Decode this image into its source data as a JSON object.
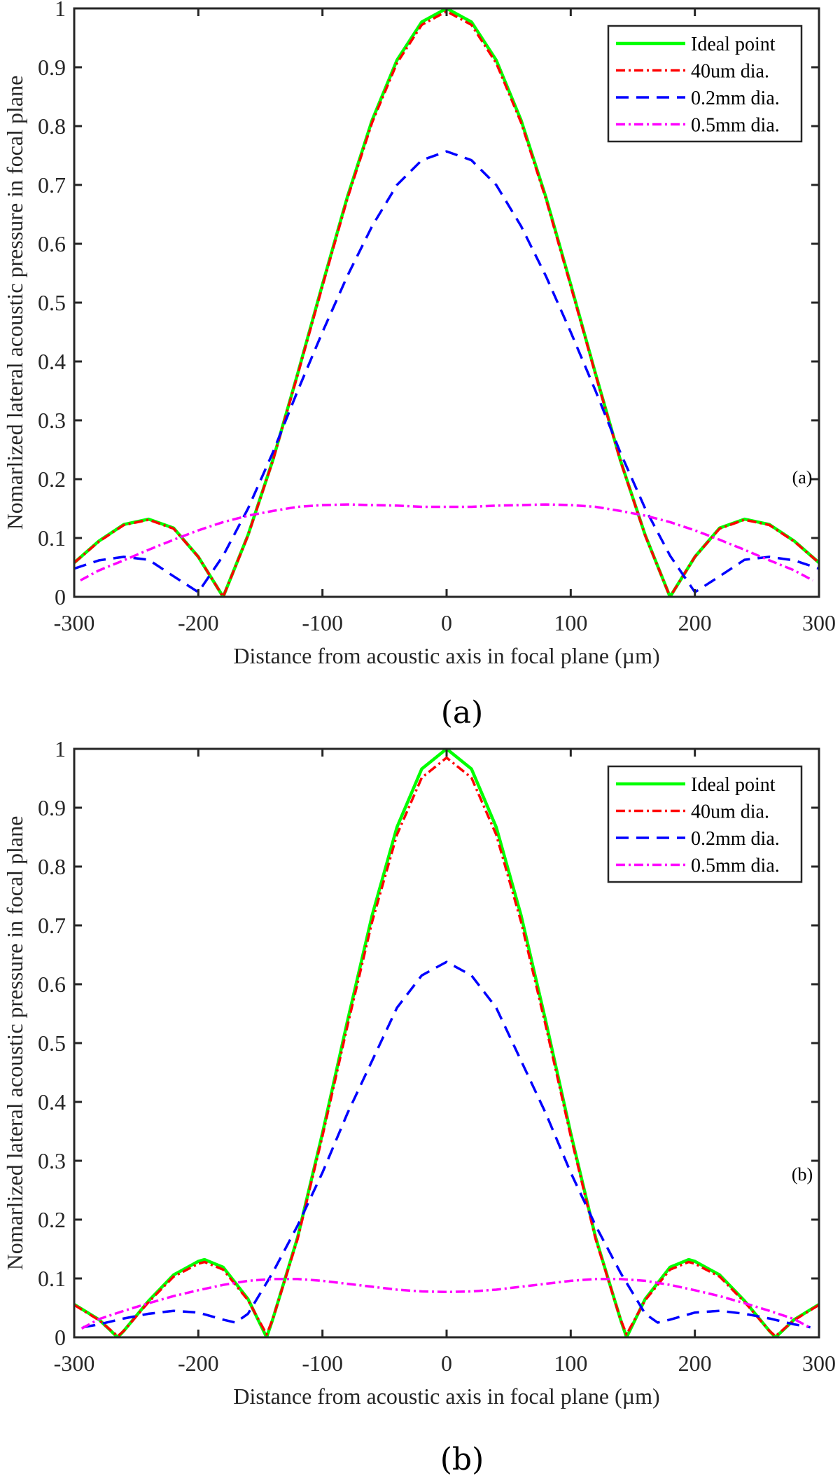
{
  "chart_data": [
    {
      "type": "line",
      "panel": "(a)",
      "caption": "(a)",
      "xlabel": "Distance from acoustic axis in focal plane (µm)",
      "ylabel": "Nomarlized lateral acoustic pressure in focal plane",
      "xlim": [
        -300,
        300
      ],
      "ylim": [
        0,
        1
      ],
      "xticks": [
        -300,
        -200,
        -100,
        0,
        100,
        200,
        300
      ],
      "yticks": [
        0,
        0.1,
        0.2,
        0.3,
        0.4,
        0.5,
        0.6,
        0.7,
        0.8,
        0.9,
        1
      ],
      "ytick_labels": [
        "0",
        "0.1",
        "0.2",
        "0.3",
        "0.4",
        "0.5",
        "0.6",
        "0.7",
        "0.8",
        "0.9",
        "1"
      ],
      "grid": false,
      "legend_position": "top-right",
      "symmetric_about_zero": true,
      "series": [
        {
          "name": "Ideal point",
          "color": "#00ff00",
          "style": "solid",
          "x": [
            0,
            20,
            40,
            60,
            80,
            100,
            120,
            140,
            160,
            180,
            200,
            220,
            240,
            260,
            280,
            300
          ],
          "y": [
            1,
            0.977,
            0.912,
            0.81,
            0.679,
            0.531,
            0.379,
            0.232,
            0.105,
            0,
            0.068,
            0.117,
            0.132,
            0.123,
            0.095,
            0.058
          ]
        },
        {
          "name": "40um dia.",
          "color": "#ff0000",
          "style": "dashdot",
          "x": [
            0,
            20,
            40,
            60,
            80,
            100,
            120,
            140,
            160,
            180,
            200,
            220,
            240,
            260,
            280,
            300
          ],
          "y": [
            0.995,
            0.972,
            0.907,
            0.806,
            0.676,
            0.528,
            0.377,
            0.231,
            0.104,
            0,
            0.068,
            0.116,
            0.131,
            0.122,
            0.094,
            0.058
          ]
        },
        {
          "name": "0.2mm dia.",
          "color": "#0000ff",
          "style": "dashed",
          "x": [
            0,
            20,
            40,
            60,
            80,
            100,
            120,
            140,
            160,
            180,
            200,
            220,
            240,
            260,
            280,
            300
          ],
          "y": [
            0.757,
            0.742,
            0.7,
            0.63,
            0.545,
            0.45,
            0.35,
            0.245,
            0.15,
            0.07,
            0.008,
            0.035,
            0.063,
            0.068,
            0.062,
            0.048
          ]
        },
        {
          "name": "0.5mm dia.",
          "color": "#ff00ff",
          "style": "dashdot",
          "x": [
            0,
            20,
            40,
            60,
            80,
            100,
            120,
            140,
            160,
            180,
            200,
            220,
            240,
            260,
            280,
            295
          ],
          "y": [
            0.153,
            0.153,
            0.155,
            0.156,
            0.157,
            0.156,
            0.153,
            0.146,
            0.138,
            0.127,
            0.113,
            0.097,
            0.08,
            0.062,
            0.045,
            0.028
          ]
        }
      ]
    },
    {
      "type": "line",
      "panel": "(b)",
      "caption": "(b)",
      "xlabel": "Distance from acoustic axis in focal plane (µm)",
      "ylabel": "Nomarlized lateral acoustic pressure in focal plane",
      "xlim": [
        -300,
        300
      ],
      "ylim": [
        0,
        1
      ],
      "xticks": [
        -300,
        -200,
        -100,
        0,
        100,
        200,
        300
      ],
      "yticks": [
        0,
        0.1,
        0.2,
        0.3,
        0.4,
        0.5,
        0.6,
        0.7,
        0.8,
        0.9,
        1
      ],
      "ytick_labels": [
        "0",
        "0.1",
        "0.2",
        "0.3",
        "0.4",
        "0.5",
        "0.6",
        "0.7",
        "0.8",
        "0.9",
        "1"
      ],
      "grid": false,
      "legend_position": "top-right",
      "symmetric_about_zero": true,
      "series": [
        {
          "name": "Ideal point",
          "color": "#00ff00",
          "style": "solid",
          "x": [
            0,
            20,
            40,
            60,
            80,
            100,
            120,
            140,
            145,
            160,
            180,
            195,
            200,
            220,
            240,
            260,
            265,
            280,
            300
          ],
          "y": [
            1,
            0.966,
            0.867,
            0.717,
            0.536,
            0.347,
            0.17,
            0.031,
            0,
            0.065,
            0.119,
            0.132,
            0.129,
            0.106,
            0.062,
            0.011,
            0,
            0.03,
            0.056
          ]
        },
        {
          "name": "40um dia.",
          "color": "#ff0000",
          "style": "dashdot",
          "x": [
            0,
            20,
            40,
            60,
            80,
            100,
            120,
            140,
            145,
            160,
            180,
            195,
            200,
            220,
            240,
            260,
            265,
            280,
            300
          ],
          "y": [
            0.985,
            0.951,
            0.854,
            0.706,
            0.528,
            0.342,
            0.167,
            0.031,
            0.005,
            0.063,
            0.115,
            0.128,
            0.125,
            0.103,
            0.06,
            0.011,
            0.002,
            0.029,
            0.055
          ]
        },
        {
          "name": "0.2mm dia.",
          "color": "#0000ff",
          "style": "dashed",
          "x": [
            0,
            20,
            40,
            60,
            80,
            100,
            120,
            140,
            160,
            170,
            180,
            200,
            220,
            240,
            260,
            280,
            293
          ],
          "y": [
            0.638,
            0.615,
            0.56,
            0.47,
            0.38,
            0.28,
            0.19,
            0.11,
            0.04,
            0.025,
            0.03,
            0.042,
            0.045,
            0.04,
            0.032,
            0.022,
            0.017
          ]
        },
        {
          "name": "0.5mm dia.",
          "color": "#ff00ff",
          "style": "dashdot",
          "x": [
            0,
            20,
            40,
            60,
            80,
            100,
            120,
            140,
            160,
            180,
            200,
            220,
            240,
            260,
            280,
            294
          ],
          "y": [
            0.077,
            0.078,
            0.081,
            0.086,
            0.091,
            0.096,
            0.099,
            0.099,
            0.096,
            0.089,
            0.08,
            0.07,
            0.058,
            0.045,
            0.031,
            0.015
          ]
        }
      ]
    }
  ]
}
